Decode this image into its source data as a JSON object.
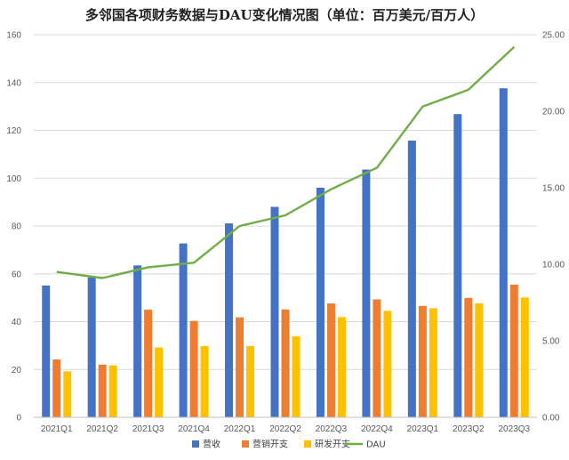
{
  "chart_data": {
    "type": "bar",
    "title": "多邻国各项财务数据与DAU变化情况图（单位：百万美元/百万人）",
    "categories": [
      "2021Q1",
      "2021Q2",
      "2021Q3",
      "2021Q4",
      "2022Q1",
      "2022Q2",
      "2022Q3",
      "2022Q4",
      "2023Q1",
      "2023Q2",
      "2023Q3"
    ],
    "series": [
      {
        "name": "营收",
        "type": "bar",
        "axis": "left",
        "color": "#4472C4",
        "values": [
          55.1,
          58.5,
          63.5,
          72.7,
          81.1,
          88.0,
          96.0,
          103.6,
          115.7,
          126.8,
          137.6
        ]
      },
      {
        "name": "营销开支",
        "type": "bar",
        "axis": "left",
        "color": "#ED7D31",
        "values": [
          24.2,
          22.0,
          45.0,
          40.3,
          41.8,
          45.1,
          47.6,
          49.3,
          46.6,
          49.9,
          55.5
        ]
      },
      {
        "name": "研发开支",
        "type": "bar",
        "axis": "left",
        "color": "#FFC000",
        "values": [
          19.2,
          21.7,
          29.2,
          29.8,
          29.8,
          33.9,
          41.9,
          44.5,
          45.6,
          47.6,
          50.1
        ]
      },
      {
        "name": "DAU",
        "type": "line",
        "axis": "right",
        "color": "#70AD47",
        "values": [
          9.5,
          9.1,
          9.8,
          10.1,
          12.5,
          13.2,
          14.9,
          16.3,
          20.3,
          21.4,
          24.2
        ]
      }
    ],
    "y_left": {
      "ylim": [
        0,
        160
      ],
      "ticks": [
        "0",
        "20",
        "40",
        "60",
        "80",
        "100",
        "120",
        "140",
        "160"
      ]
    },
    "y_right": {
      "ylim": [
        0,
        25
      ],
      "ticks": [
        "0.00",
        "5.00",
        "10.00",
        "15.00",
        "20.00",
        "25.00"
      ]
    },
    "grid": "horizontal",
    "legend_position": "bottom"
  }
}
